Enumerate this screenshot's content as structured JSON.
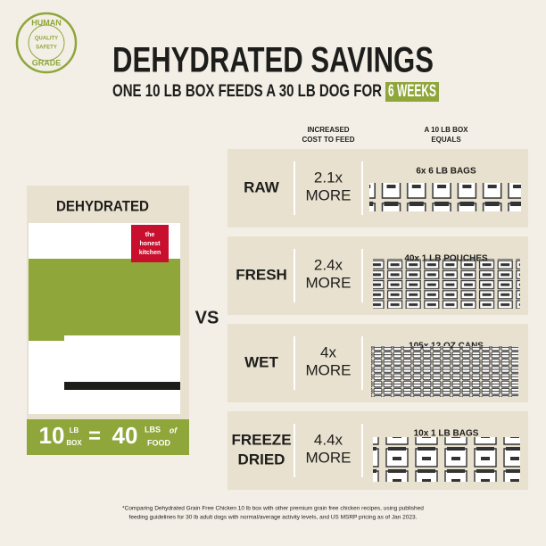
{
  "badge": {
    "top": "HUMAN",
    "bottom": "GRADE",
    "inner": [
      "QUALITY",
      "SAFETY"
    ]
  },
  "header": {
    "title": "DEHYDRATED SAVINGS",
    "subtitle": "ONE 10 LB BOX FEEDS A 30 LB DOG FOR",
    "highlight": "6 WEEKS"
  },
  "columns": [
    [
      "INCREASED",
      "COST TO FEED"
    ],
    [
      "A 10 LB BOX",
      "EQUALS"
    ]
  ],
  "product": {
    "label": "DEHYDRATED",
    "brand": [
      "the",
      "honest",
      "kitchen"
    ],
    "equation": {
      "box_amount": "10",
      "box_unit": [
        "LB",
        "BOX"
      ],
      "equals": "=",
      "food_amount": "40",
      "food_unit": "LBS",
      "of": "of",
      "food": "FOOD"
    }
  },
  "vs": "VS",
  "rows": [
    {
      "label": [
        "RAW"
      ],
      "cost": "2.1x",
      "more": "MORE",
      "equals": "6x 6 LB BAGS"
    },
    {
      "label": [
        "FRESH"
      ],
      "cost": "2.4x",
      "more": "MORE",
      "equals": "40x 1 LB POUCHES"
    },
    {
      "label": [
        "WET"
      ],
      "cost": "4x",
      "more": "MORE",
      "equals": "105x 12 OZ CANS"
    },
    {
      "label": [
        "FREEZE",
        "DRIED"
      ],
      "cost": "4.4x",
      "more": "MORE",
      "equals": "10x 1 LB BAGS"
    }
  ],
  "footnote": [
    "*Comparing Dehydrated Grain Free Chicken 10 lb box with other premium grain free chicken recipes, using published",
    "feeding guidelines for 30 lb adult dogs with normal/average activity levels, and US MSRP pricing as of Jan 2023."
  ]
}
